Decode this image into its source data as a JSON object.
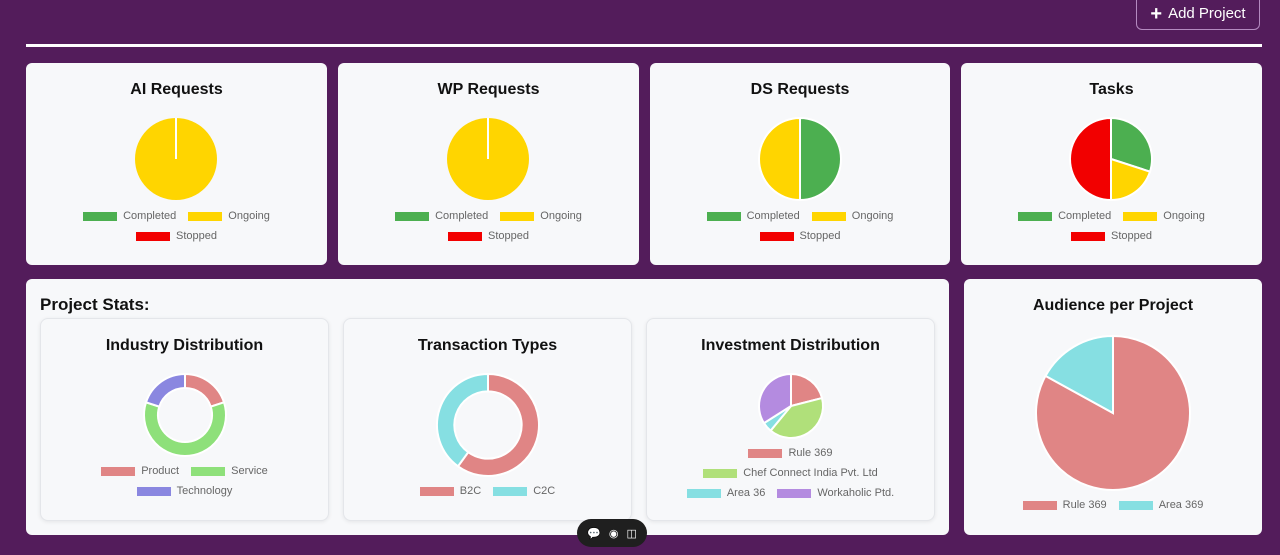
{
  "header": {
    "add_project_label": "Add Project"
  },
  "colors": {
    "completed": "#4caf50",
    "ongoing": "#ffd500",
    "stopped": "#f20000",
    "pink": "#e08585",
    "green": "#8ee07a",
    "purple": "#8a87e0",
    "cyan": "#86dfe2",
    "lightgreen": "#b0e07a",
    "violet": "#b48be0"
  },
  "status_cards": [
    {
      "title": "AI Requests",
      "legend": [
        "Completed",
        "Ongoing",
        "Stopped"
      ]
    },
    {
      "title": "WP Requests",
      "legend": [
        "Completed",
        "Ongoing",
        "Stopped"
      ]
    },
    {
      "title": "DS Requests",
      "legend": [
        "Completed",
        "Ongoing",
        "Stopped"
      ]
    },
    {
      "title": "Tasks",
      "legend": [
        "Completed",
        "Ongoing",
        "Stopped"
      ]
    }
  ],
  "project_stats": {
    "title": "Project Stats:",
    "industry": {
      "title": "Industry Distribution",
      "legend": [
        "Product",
        "Service",
        "Technology"
      ]
    },
    "transaction": {
      "title": "Transaction Types",
      "legend": [
        "B2C",
        "C2C"
      ]
    },
    "investment": {
      "title": "Investment Distribution",
      "legend": [
        "Rule 369",
        "Chef Connect India Pvt. Ltd",
        "Area 36",
        "Workaholic Ptd."
      ]
    }
  },
  "audience": {
    "title": "Audience per Project",
    "legend": [
      "Rule 369",
      "Area 369"
    ]
  },
  "chart_data": [
    {
      "type": "pie",
      "title": "AI Requests",
      "categories": [
        "Completed",
        "Ongoing",
        "Stopped"
      ],
      "values": [
        0,
        1,
        0
      ]
    },
    {
      "type": "pie",
      "title": "WP Requests",
      "categories": [
        "Completed",
        "Ongoing",
        "Stopped"
      ],
      "values": [
        0,
        1,
        0
      ]
    },
    {
      "type": "pie",
      "title": "DS Requests",
      "categories": [
        "Completed",
        "Ongoing",
        "Stopped"
      ],
      "values": [
        1,
        1,
        0
      ]
    },
    {
      "type": "pie",
      "title": "Tasks",
      "categories": [
        "Completed",
        "Ongoing",
        "Stopped"
      ],
      "values": [
        3,
        2,
        5
      ]
    },
    {
      "type": "pie",
      "title": "Industry Distribution",
      "donut": true,
      "categories": [
        "Product",
        "Service",
        "Technology"
      ],
      "values": [
        2,
        6,
        2
      ]
    },
    {
      "type": "pie",
      "title": "Transaction Types",
      "donut": true,
      "categories": [
        "B2C",
        "C2C"
      ],
      "values": [
        6,
        4
      ]
    },
    {
      "type": "pie",
      "title": "Investment Distribution",
      "categories": [
        "Rule 369",
        "Chef Connect India Pvt. Ltd",
        "Area 36",
        "Workaholic Ptd."
      ],
      "values": [
        21,
        40,
        5,
        34
      ]
    },
    {
      "type": "pie",
      "title": "Audience per Project",
      "categories": [
        "Rule 369",
        "Area 369"
      ],
      "values": [
        83,
        17
      ]
    }
  ]
}
